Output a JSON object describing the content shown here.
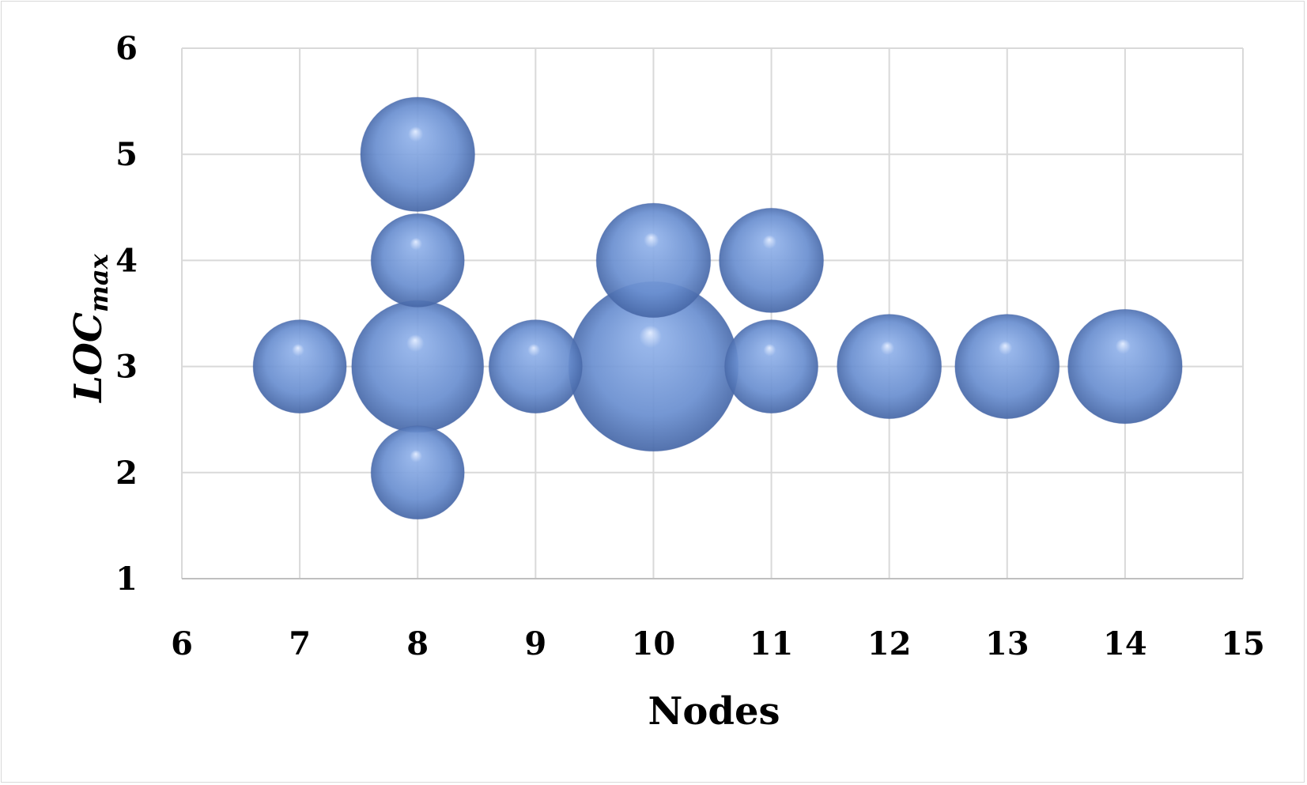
{
  "chart_data": {
    "type": "scatter",
    "variant": "bubble",
    "title": "",
    "xlabel": "Nodes",
    "ylabel_main": "LOC",
    "ylabel_sub": "max",
    "xlim": [
      6,
      15
    ],
    "ylim": [
      1,
      6
    ],
    "x_ticks": [
      "6",
      "7",
      "8",
      "9",
      "10",
      "11",
      "12",
      "13",
      "14",
      "15"
    ],
    "y_ticks": [
      "1",
      "2",
      "3",
      "4",
      "5",
      "6"
    ],
    "grid": true,
    "legend": "none",
    "bubble_color": "#6f95d6",
    "points": [
      {
        "x": 7,
        "y": 3,
        "size": 1
      },
      {
        "x": 8,
        "y": 2,
        "size": 1
      },
      {
        "x": 8,
        "y": 3,
        "size": 2
      },
      {
        "x": 8,
        "y": 4,
        "size": 1
      },
      {
        "x": 8,
        "y": 5,
        "size": 1.5
      },
      {
        "x": 9,
        "y": 3,
        "size": 1
      },
      {
        "x": 10,
        "y": 3,
        "size": 3.3
      },
      {
        "x": 10,
        "y": 4,
        "size": 1.5
      },
      {
        "x": 11,
        "y": 3,
        "size": 1
      },
      {
        "x": 11,
        "y": 4,
        "size": 1.25
      },
      {
        "x": 12,
        "y": 3,
        "size": 1.25
      },
      {
        "x": 13,
        "y": 3,
        "size": 1.25
      },
      {
        "x": 14,
        "y": 3,
        "size": 1.5
      }
    ]
  }
}
